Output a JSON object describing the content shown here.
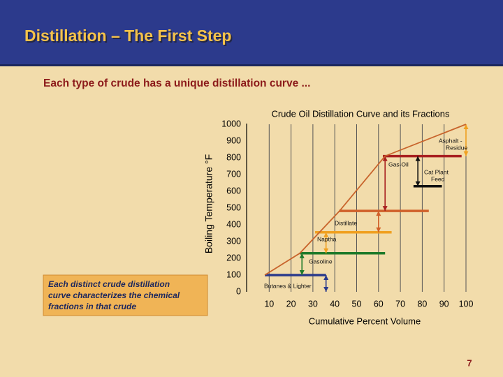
{
  "slide": {
    "title": "Distillation – The First Step",
    "subtitle": "Each type of crude has a unique distillation curve ...",
    "callout": [
      "Each distinct crude distillation",
      "curve characterizes the chemical",
      "fractions in that crude"
    ],
    "page_number": "7"
  },
  "chart_data": {
    "type": "line",
    "title": "Crude Oil Distillation Curve and its Fractions",
    "x_label": "Cumulative Percent Volume",
    "y_label": "Boiling Temperature °F",
    "x": [
      8,
      24,
      42,
      63,
      100
    ],
    "series": [
      {
        "color": "#c8642c",
        "values": [
          100,
          230,
          480,
          810,
          1000
        ]
      }
    ],
    "xlim": [
      0,
      100
    ],
    "xticks": [
      10,
      20,
      30,
      40,
      50,
      60,
      70,
      80,
      90,
      100
    ],
    "ylim": [
      0,
      1000
    ],
    "yticks": [
      0,
      100,
      200,
      300,
      400,
      500,
      600,
      700,
      800,
      900,
      1000
    ],
    "grid": true,
    "fractions": [
      {
        "label": [
          "Butanes & Lighter"
        ],
        "color": "#2a3a8c",
        "level": 100,
        "x_range": [
          8,
          36
        ],
        "arrow": {
          "x": 36,
          "from": 100,
          "to": 0
        }
      },
      {
        "label": [
          "Gasoline"
        ],
        "color": "#1e7a2a",
        "level": 230,
        "x_range": [
          24,
          63
        ],
        "arrow": {
          "x": 25,
          "from": 230,
          "to": 100
        }
      },
      {
        "label": [
          "Naptha"
        ],
        "color": "#f0a020",
        "level": 355,
        "x_range": [
          31,
          66
        ],
        "arrow": {
          "x": 36,
          "from": 355,
          "to": 230
        }
      },
      {
        "label": [
          "Distillate"
        ],
        "color": "#d0602a",
        "level": 483,
        "x_range": [
          42,
          83
        ],
        "arrow": {
          "x": 60,
          "from": 483,
          "to": 355
        }
      },
      {
        "label": [
          "Gas-Oil"
        ],
        "color": "#a82020",
        "level": 810,
        "x_range": [
          62,
          98
        ],
        "arrow": {
          "x": 63,
          "from": 810,
          "to": 483
        }
      },
      {
        "label": [
          "Cat Plant",
          "Feed"
        ],
        "color": "#111111",
        "level": 630,
        "x_range": [
          76,
          89
        ],
        "arrow": {
          "x": 78,
          "from": 810,
          "to": 630
        }
      },
      {
        "label": [
          "Asphalt -",
          "Residue"
        ],
        "color": "#f0a020",
        "arrow": {
          "x": 100,
          "from": 1000,
          "to": 810
        }
      }
    ]
  }
}
